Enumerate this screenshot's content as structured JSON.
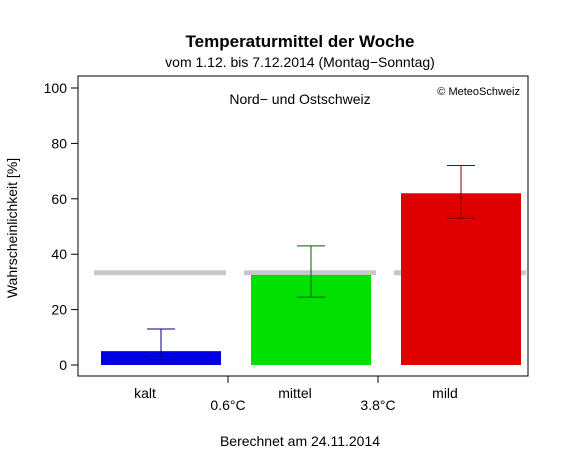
{
  "chart_data": {
    "type": "bar",
    "title": "Temperaturmittel der Woche",
    "subtitle": "vom 1.12. bis 7.12.2014 (Montag−Sonntag)",
    "ylabel": "Wahrscheinlichkeit [%]",
    "ylim": [
      0,
      100
    ],
    "yticks": [
      0,
      20,
      40,
      60,
      80,
      100
    ],
    "region": "Nord− und Ostschweiz",
    "copyright": "© MeteoSchweiz",
    "footer": "Berechnet am 24.11.2014",
    "categories": [
      "kalt",
      "mittel",
      "mild"
    ],
    "values": [
      5,
      32.5,
      62
    ],
    "error_low": [
      2,
      24.5,
      53
    ],
    "error_high": [
      13,
      43,
      72
    ],
    "colors": [
      "#0000e0",
      "#00e000",
      "#e00000"
    ],
    "error_colors": [
      "#000080",
      "#006000",
      "#800000"
    ],
    "climatology": 33.3,
    "climatology_color": "#c8c8c8",
    "thresholds": [
      "0.6°C",
      "3.8°C"
    ],
    "grid": false,
    "legend": "none"
  }
}
